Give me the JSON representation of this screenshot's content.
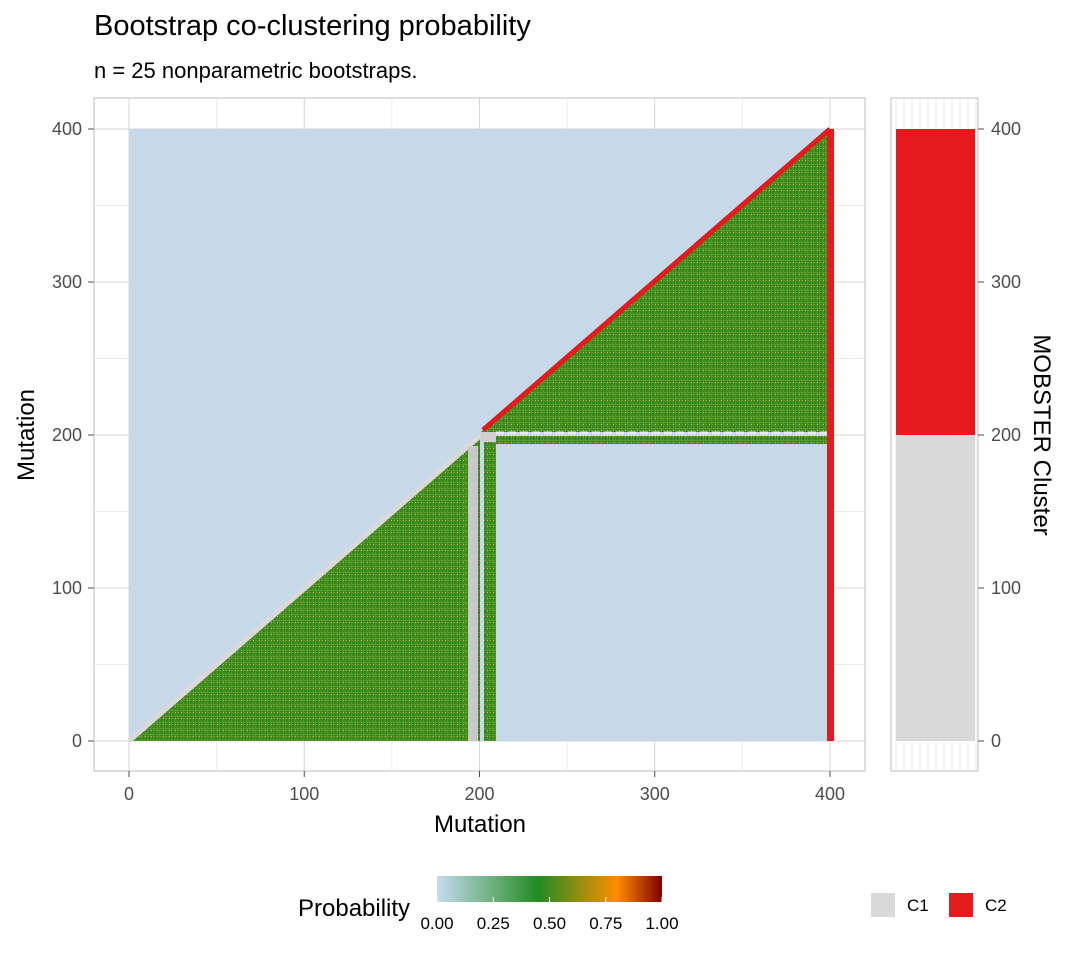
{
  "title": "Bootstrap co-clustering probability",
  "subtitle": "n = 25 nonparametric bootstraps.",
  "colors": {
    "background_tile": "#c7d8e8",
    "panel_border": "#bdbdbd",
    "grid": "#dcdcdc",
    "C1": "#d9d9d9",
    "C2": "#e41a1c",
    "gradient": [
      "#c6dbef",
      "#228b22",
      "#ff8c00",
      "#800000"
    ]
  },
  "chart_data": [
    {
      "type": "heatmap",
      "xlabel": "Mutation",
      "ylabel": "Mutation",
      "xlim": [
        0,
        400
      ],
      "ylim": [
        0,
        400
      ],
      "x_ticks": [
        "0",
        "100",
        "200",
        "300",
        "400"
      ],
      "y_ticks": [
        "0",
        "100",
        "200",
        "300",
        "400"
      ],
      "grid": true,
      "regions": [
        {
          "name": "C1 block",
          "x": [
            0,
            200
          ],
          "y": [
            0,
            200
          ],
          "shape": "lower-triangle",
          "typical_probability": 0.5
        },
        {
          "name": "C2 block",
          "x": [
            200,
            400
          ],
          "y": [
            200,
            400
          ],
          "shape": "lower-triangle",
          "typical_probability": 0.5
        },
        {
          "name": "off-diagonal",
          "x": [
            200,
            400
          ],
          "y": [
            0,
            200
          ],
          "typical_probability": 0.0
        }
      ],
      "legend": {
        "title": "Probability",
        "position": "bottom",
        "breaks": [
          "0.00",
          "0.25",
          "0.50",
          "0.75",
          "1.00"
        ]
      }
    },
    {
      "type": "bar",
      "ylabel": "MOBSTER Cluster",
      "y_ticks": [
        "0",
        "100",
        "200",
        "300",
        "400"
      ],
      "segments": [
        {
          "cluster": "C1",
          "from": 0,
          "to": 200
        },
        {
          "cluster": "C2",
          "from": 200,
          "to": 400
        }
      ],
      "legend": {
        "position": "bottom-right",
        "entries": [
          "C1",
          "C2"
        ]
      }
    }
  ]
}
